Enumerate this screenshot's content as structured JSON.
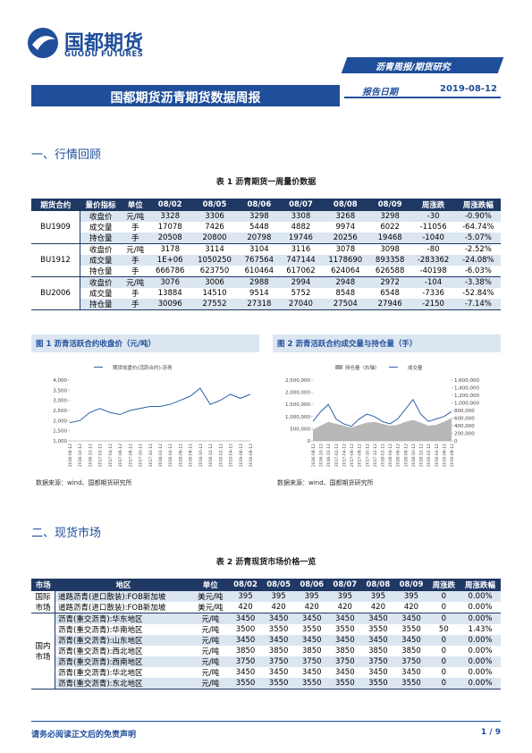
{
  "header": {
    "logo_cn": "国都期货",
    "logo_en": "GUODU FUTURES",
    "tag": "沥青周报/期货研究",
    "title": "国都期货沥青期货数据周报",
    "date_label": "报告日期",
    "date": "2019-08-12"
  },
  "section1": "一、行情回顾",
  "table1": {
    "caption": "表 1 沥青期货一周量价数据",
    "columns": [
      "期货合约",
      "量价指标",
      "单位",
      "08/02",
      "08/05",
      "08/06",
      "08/07",
      "08/08",
      "08/09",
      "周涨跌",
      "周涨跌幅"
    ],
    "groups": [
      {
        "contract": "BU1909",
        "rows": [
          [
            "收盘价",
            "元/吨",
            "3328",
            "3306",
            "3298",
            "3308",
            "3268",
            "3298",
            "-30",
            "-0.90%"
          ],
          [
            "成交量",
            "手",
            "17078",
            "7426",
            "5448",
            "4882",
            "9974",
            "6022",
            "-11056",
            "-64.74%"
          ],
          [
            "持仓量",
            "手",
            "20508",
            "20800",
            "20798",
            "19746",
            "20256",
            "19468",
            "-1040",
            "-5.07%"
          ]
        ]
      },
      {
        "contract": "BU1912",
        "rows": [
          [
            "收盘价",
            "元/吨",
            "3178",
            "3114",
            "3104",
            "3116",
            "3078",
            "3098",
            "-80",
            "-2.52%"
          ],
          [
            "成交量",
            "手",
            "1E+06",
            "1050250",
            "767564",
            "747144",
            "1178690",
            "893358",
            "-283362",
            "-24.08%"
          ],
          [
            "持仓量",
            "手",
            "666786",
            "623750",
            "610464",
            "617062",
            "624064",
            "626588",
            "-40198",
            "-6.03%"
          ]
        ]
      },
      {
        "contract": "BU2006",
        "rows": [
          [
            "收盘价",
            "元/吨",
            "3076",
            "3006",
            "2988",
            "2994",
            "2948",
            "2972",
            "-104",
            "-3.38%"
          ],
          [
            "成交量",
            "手",
            "13884",
            "14510",
            "9514",
            "5752",
            "8548",
            "6548",
            "-7336",
            "-52.84%"
          ],
          [
            "持仓量",
            "手",
            "30096",
            "27552",
            "27318",
            "27040",
            "27504",
            "27946",
            "-2150",
            "-7.14%"
          ]
        ]
      }
    ]
  },
  "figures": [
    {
      "caption": "图 1 沥青活跃合约收盘价（元/吨）",
      "source": "数据来源：wind、国都期货研究所",
      "x": [
        "2016-08-12",
        "2016-10-12",
        "2016-12-12",
        "2017-02-12",
        "2017-04-12",
        "2017-06-12",
        "2017-08-12",
        "2017-10-12",
        "2017-12-12",
        "2018-02-12",
        "2018-04-12",
        "2018-06-12",
        "2018-08-12",
        "2018-10-12",
        "2018-12-12",
        "2019-02-12",
        "2019-04-12",
        "2019-06-12",
        "2019-08-12"
      ],
      "ylim": [
        1000,
        4000
      ],
      "yticks": [
        {
          "value": 1000,
          "label": "1,000"
        },
        {
          "value": 1500,
          "label": "1,500"
        },
        {
          "value": 2000,
          "label": "2,000"
        },
        {
          "value": 2500,
          "label": "2,500"
        },
        {
          "value": 3000,
          "label": "3,000"
        },
        {
          "value": 3500,
          "label": "3,500"
        },
        {
          "value": 4000,
          "label": "4,000"
        }
      ],
      "series": [
        {
          "name": "期货收盘价(活跃合约):沥青",
          "color": "#2e5fa8",
          "values": [
            1900,
            2000,
            2400,
            2600,
            2400,
            2300,
            2500,
            2600,
            2700,
            2700,
            2800,
            3000,
            3200,
            3600,
            2800,
            3000,
            3300,
            3100,
            3300
          ]
        }
      ]
    },
    {
      "caption": "图 2 沥青活跃合约成交量与持仓量（手）",
      "source": "数据来源：wind、国都期货研究所",
      "x": [
        "2016-08-12",
        "2016-10-12",
        "2016-12-12",
        "2017-02-12",
        "2017-04-12",
        "2017-06-12",
        "2017-08-12",
        "2017-10-12",
        "2017-12-12",
        "2018-02-12",
        "2018-04-12",
        "2018-06-12",
        "2018-08-12",
        "2018-10-12",
        "2018-12-12",
        "2019-02-12",
        "2019-04-12",
        "2019-06-12",
        "2019-08-12"
      ],
      "ylim": [
        0,
        2500000
      ],
      "yticks": [
        0,
        {
          "value": 500000,
          "label": "500,000"
        },
        {
          "value": 1000000,
          "label": "1,000,000"
        },
        {
          "value": 1500000,
          "label": "1,500,000"
        },
        {
          "value": 2000000,
          "label": "2,000,000"
        },
        {
          "value": 2500000,
          "label": "2,500,000"
        }
      ],
      "y2lim": [
        0,
        1600000
      ],
      "y2ticks": [
        0,
        {
          "value": 200000,
          "label": "200,000"
        },
        {
          "value": 400000,
          "label": "400,000"
        },
        {
          "value": 600000,
          "label": "600,000"
        },
        {
          "value": 800000,
          "label": "800,000"
        },
        {
          "value": 1000000,
          "label": "1,000,000"
        },
        {
          "value": 1200000,
          "label": "1,200,000"
        },
        {
          "value": 1400000,
          "label": "1,400,000"
        },
        {
          "value": 1600000,
          "label": "1,600,000"
        }
      ],
      "series": [
        {
          "name": "持仓量（右轴）",
          "color": "#a6a6a6",
          "axis": "y2",
          "values": [
            300000,
            400000,
            500000,
            450000,
            400000,
            350000,
            420000,
            480000,
            500000,
            450000,
            400000,
            420000,
            500000,
            550000,
            480000,
            400000,
            420000,
            500000,
            600000
          ]
        },
        {
          "name": "成交量",
          "color": "#2e5fa8",
          "values": [
            800000,
            1200000,
            1500000,
            900000,
            700000,
            600000,
            900000,
            1100000,
            1000000,
            800000,
            700000,
            900000,
            1300000,
            1700000,
            1100000,
            800000,
            900000,
            1000000,
            1200000
          ]
        }
      ]
    }
  ],
  "section2": "二、现货市场",
  "table2": {
    "caption": "表 2 沥青现货市场价格一览",
    "columns": [
      "市场",
      "地区",
      "单位",
      "08/02",
      "08/05",
      "08/06",
      "08/07",
      "08/08",
      "08/09",
      "周涨跌",
      "周涨跌幅"
    ],
    "groups": [
      {
        "market": "国际市场",
        "rows": [
          [
            "道路沥青(进口散装):FOB新加坡",
            "美元/吨",
            "395",
            "395",
            "395",
            "395",
            "395",
            "395",
            "0",
            "0.00%"
          ],
          [
            "道路沥青(进口散装):FOB新加坡",
            "美元/吨",
            "420",
            "420",
            "420",
            "420",
            "420",
            "420",
            "0",
            "0.00%"
          ]
        ]
      },
      {
        "market": "国内市场",
        "rows": [
          [
            "沥青(重交沥青):华东地区",
            "元/吨",
            "3450",
            "3450",
            "3450",
            "3450",
            "3450",
            "3450",
            "0",
            "0.00%"
          ],
          [
            "沥青(重交沥青):华南地区",
            "元/吨",
            "3500",
            "3550",
            "3550",
            "3550",
            "3550",
            "3550",
            "50",
            "1.43%"
          ],
          [
            "沥青(重交沥青):山东地区",
            "元/吨",
            "3450",
            "3450",
            "3450",
            "3450",
            "3450",
            "3450",
            "0",
            "0.00%"
          ],
          [
            "沥青(重交沥青):西北地区",
            "元/吨",
            "3850",
            "3850",
            "3850",
            "3850",
            "3850",
            "3850",
            "0",
            "0.00%"
          ],
          [
            "沥青(重交沥青):西南地区",
            "元/吨",
            "3750",
            "3750",
            "3750",
            "3750",
            "3750",
            "3750",
            "0",
            "0.00%"
          ],
          [
            "沥青(重交沥青):华北地区",
            "元/吨",
            "3450",
            "3450",
            "3450",
            "3450",
            "3450",
            "3450",
            "0",
            "0.00%"
          ],
          [
            "沥青(重交沥青):东北地区",
            "元/吨",
            "3550",
            "3550",
            "3550",
            "3550",
            "3550",
            "3550",
            "0",
            "0.00%"
          ]
        ]
      }
    ]
  },
  "footer": {
    "note": "请务必阅读正文后的免责声明",
    "page": "1 / 9"
  }
}
